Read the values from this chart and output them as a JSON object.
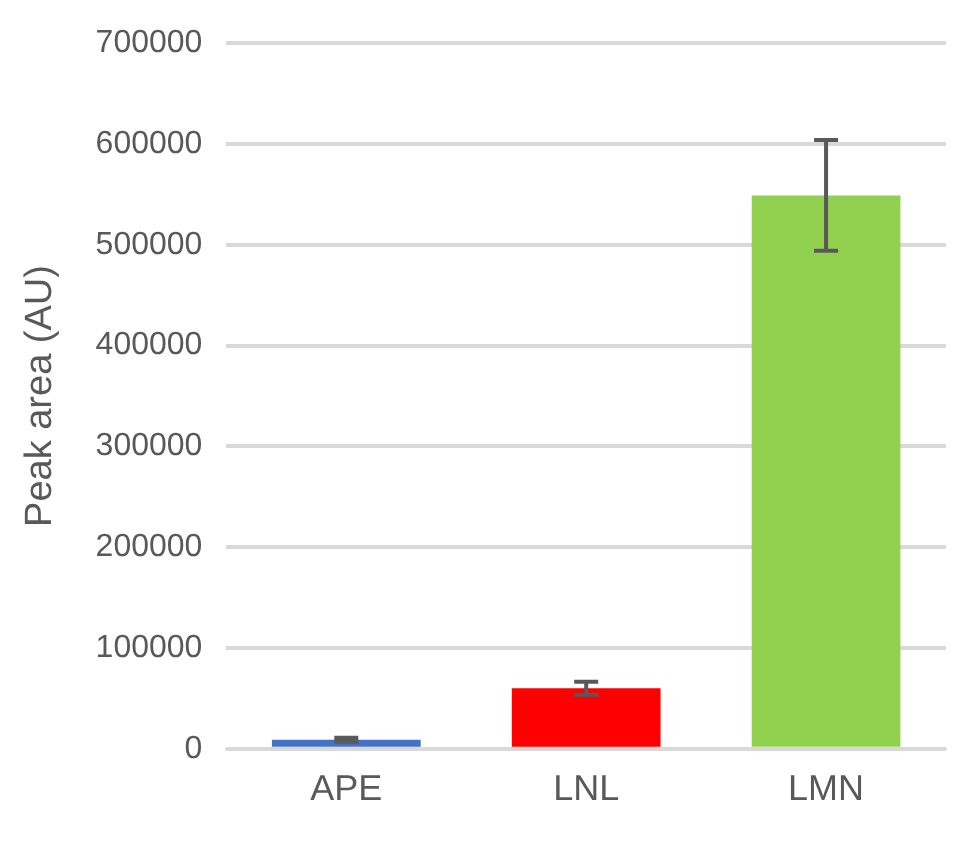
{
  "chart_data": {
    "type": "bar",
    "ylabel": "Peak area (AU)",
    "categories": [
      "APE",
      "LNL",
      "LMN"
    ],
    "values": [
      9000,
      60000,
      549000
    ],
    "colors": [
      "#4472c4",
      "#ff0000",
      "#92d050"
    ],
    "errors": [
      2000,
      6500,
      55000
    ],
    "ylim": [
      0,
      700000
    ],
    "yticks": [
      0,
      100000,
      200000,
      300000,
      400000,
      500000,
      600000,
      700000
    ],
    "grid": "y"
  }
}
